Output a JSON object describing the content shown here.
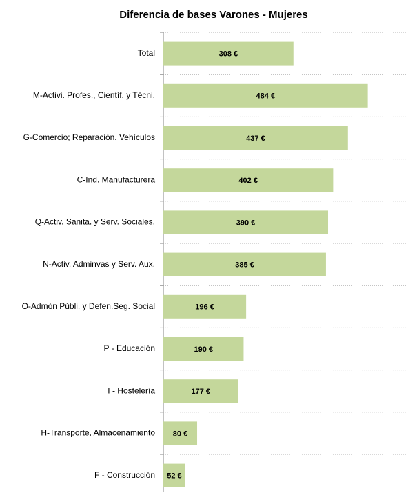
{
  "chart_data": {
    "type": "hbar",
    "title": "Diferencia de bases Varones - Mujeres",
    "categories": [
      "Total",
      "M-Activi. Profes., Científ. y Técni.",
      "G-Comercio; Reparación. Vehículos",
      "C-Ind. Manufacturera",
      "Q-Activ. Sanita. y Serv. Sociales.",
      "N-Activ. Adminvas y Serv. Aux.",
      "O-Admón Públi. y Defen.Seg. Social",
      "P - Educación",
      "I - Hostelería",
      "H-Transporte, Almacenamiento",
      "F - Construcción"
    ],
    "values": [
      308,
      484,
      437,
      402,
      390,
      385,
      196,
      190,
      177,
      80,
      52
    ],
    "value_labels": [
      "308 €",
      "484 €",
      "437 €",
      "402 €",
      "390 €",
      "385 €",
      "196 €",
      "190 €",
      "177 €",
      "80 €",
      "52 €"
    ],
    "color": "#c4d79b",
    "xlim": [
      0,
      576
    ]
  }
}
